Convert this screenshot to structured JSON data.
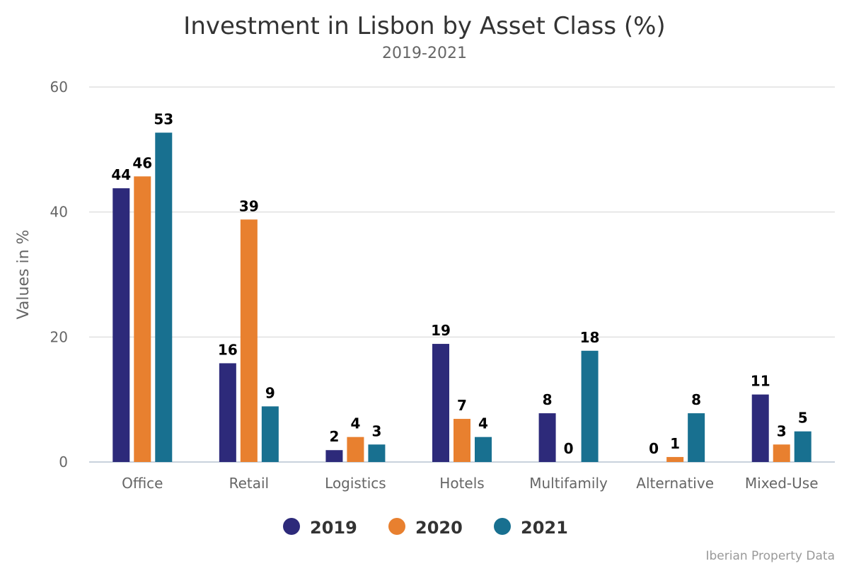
{
  "chart_data": {
    "type": "bar",
    "title": "Investment in Lisbon by Asset Class (%)",
    "subtitle": "2019-2021",
    "xlabel": "",
    "ylabel": "Values in %",
    "ylim": [
      0,
      60
    ],
    "yticks": [
      0,
      20,
      40,
      60
    ],
    "grid": true,
    "legend_position": "bottom",
    "categories": [
      "Office",
      "Retail",
      "Logistics",
      "Hotels",
      "Multifamily",
      "Alternative",
      "Mixed-Use"
    ],
    "series": [
      {
        "name": "2019",
        "color": "#2d2a7a",
        "values": [
          43.8,
          15.8,
          1.9,
          18.9,
          7.8,
          0,
          10.8
        ]
      },
      {
        "name": "2020",
        "color": "#e8802f",
        "values": [
          45.7,
          38.8,
          4.0,
          6.9,
          0,
          0.8,
          2.8
        ]
      },
      {
        "name": "2021",
        "color": "#187090",
        "values": [
          52.7,
          8.9,
          2.8,
          4.0,
          17.8,
          7.8,
          4.9
        ]
      }
    ],
    "credits": "Iberian Property Data"
  }
}
